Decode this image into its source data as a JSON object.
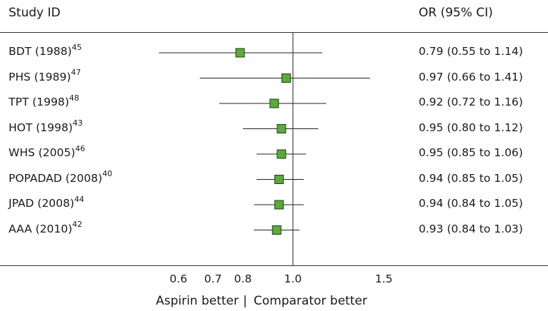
{
  "chart_data": {
    "type": "forest",
    "header_left": "Study ID",
    "header_right": "OR (95% CI)",
    "studies": [
      {
        "name": "BDT (1988)",
        "ref": "45",
        "or": 0.79,
        "lo": 0.55,
        "hi": 1.14,
        "ci_text": "0.79 (0.55 to 1.14)"
      },
      {
        "name": "PHS (1989)",
        "ref": "47",
        "or": 0.97,
        "lo": 0.66,
        "hi": 1.41,
        "ci_text": "0.97 (0.66 to 1.41)"
      },
      {
        "name": "TPT (1998)",
        "ref": "48",
        "or": 0.92,
        "lo": 0.72,
        "hi": 1.16,
        "ci_text": "0.92 (0.72 to 1.16)"
      },
      {
        "name": "HOT (1998)",
        "ref": "43",
        "or": 0.95,
        "lo": 0.8,
        "hi": 1.12,
        "ci_text": "0.95 (0.80 to 1.12)"
      },
      {
        "name": "WHS (2005)",
        "ref": "46",
        "or": 0.95,
        "lo": 0.85,
        "hi": 1.06,
        "ci_text": "0.95 (0.85 to 1.06)"
      },
      {
        "name": "POPADAD (2008)",
        "ref": "40",
        "or": 0.94,
        "lo": 0.85,
        "hi": 1.05,
        "ci_text": "0.94 (0.85 to 1.05)"
      },
      {
        "name": "JPAD (2008)",
        "ref": "44",
        "or": 0.94,
        "lo": 0.84,
        "hi": 1.05,
        "ci_text": "0.94 (0.84 to 1.05)"
      },
      {
        "name": "AAA (2010)",
        "ref": "42",
        "or": 0.93,
        "lo": 0.84,
        "hi": 1.03,
        "ci_text": "0.93 (0.84 to 1.03)"
      }
    ],
    "x_ticks": [
      "0.6",
      "0.7",
      "0.8",
      "1.0",
      "1.5"
    ],
    "x_scale": "log",
    "reference_line": 1.0,
    "footer_left": "Aspirin better",
    "footer_separator": "|",
    "footer_right": "Comparator better",
    "marker_color": "#5aaa3c"
  }
}
